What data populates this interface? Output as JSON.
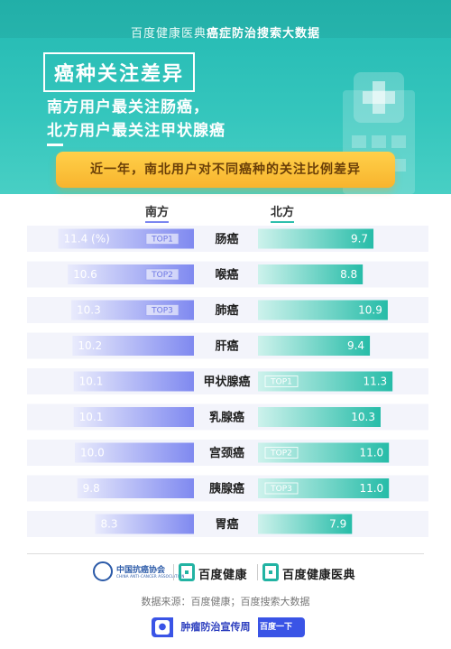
{
  "header": {
    "subtitle_prefix": "百度健康医典",
    "subtitle_bold": "癌症防治搜索大数据",
    "title": "癌种关注差异",
    "subtitle_line1": "南方用户最关注肠癌，",
    "subtitle_line2": "北方用户最关注甲状腺癌"
  },
  "banner": {
    "text": "近一年，南北用户对不同癌种的关注比例差异"
  },
  "columns": {
    "south": "南方",
    "north": "北方"
  },
  "colors": {
    "south_bar_start": "#e9ebfc",
    "south_bar_end": "#7f89f0",
    "north_bar_start": "#cdf2ec",
    "north_bar_end": "#26bca8",
    "header_teal": "#2fbfb6",
    "banner_yellow": "#fbbe35"
  },
  "chart_data": {
    "type": "bar",
    "categories": [
      "肠癌",
      "喉癌",
      "肺癌",
      "肝癌",
      "甲状腺癌",
      "乳腺癌",
      "宫颈癌",
      "胰腺癌",
      "胃癌"
    ],
    "series": [
      {
        "name": "南方",
        "values": [
          11.4,
          10.6,
          10.3,
          10.2,
          10.1,
          10.1,
          10.0,
          9.8,
          8.3
        ],
        "value_labels": [
          "11.4 (%)",
          "10.6",
          "10.3",
          "10.2",
          "10.1",
          "10.1",
          "10.0",
          "9.8",
          "8.3"
        ],
        "tags": [
          "TOP1",
          "TOP2",
          "TOP3",
          "",
          "",
          "",
          "",
          "",
          ""
        ]
      },
      {
        "name": "北方",
        "values": [
          9.7,
          8.8,
          10.9,
          9.4,
          11.3,
          10.3,
          11.0,
          11.0,
          7.9
        ],
        "value_labels": [
          "9.7",
          "8.8",
          "10.9",
          "9.4",
          "11.3",
          "10.3",
          "11.0",
          "11.0",
          "7.9"
        ],
        "tags": [
          "",
          "",
          "",
          "",
          "TOP1",
          "",
          "TOP2",
          "TOP3",
          ""
        ]
      }
    ],
    "unit": "(%)"
  },
  "footer": {
    "association_name": "中国抗癌协会",
    "association_en": "CHINA ANTI-CANCER ASSOCIATION",
    "brand1": "百度健康",
    "brand2": "百度健康医典",
    "source": "数据来源：百度健康；百度搜索大数据",
    "week_badge": "肿瘤防治宣传周",
    "baidu_tag": "百度一下"
  }
}
